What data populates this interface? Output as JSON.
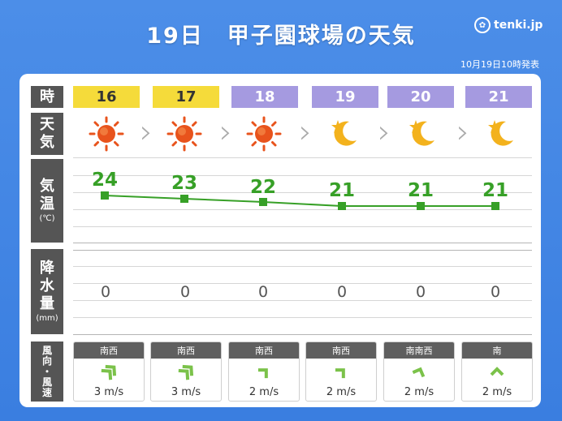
{
  "title": "19日　甲子園球場の天気",
  "logo_text": "tenki.jp",
  "issued": "10月19日10時発表",
  "row_labels": {
    "hour": "時",
    "weather_1": "天",
    "weather_2": "気",
    "temp_1": "気",
    "temp_2": "温",
    "temp_unit": "(℃)",
    "rain_1": "降",
    "rain_2": "水",
    "rain_3": "量",
    "rain_unit": "(mm)",
    "wind_1": "風",
    "wind_2": "向",
    "wind_3": "・",
    "wind_4": "風",
    "wind_5": "速"
  },
  "hours": [
    {
      "label": "16",
      "period": "day",
      "weather": "sun-icon",
      "temp": "24",
      "rain": "0",
      "wind_dir": "南西",
      "wind_speed": "3 m/s",
      "wind_level": "strong"
    },
    {
      "label": "17",
      "period": "day",
      "weather": "sun-icon",
      "temp": "23",
      "rain": "0",
      "wind_dir": "南西",
      "wind_speed": "3 m/s",
      "wind_level": "strong"
    },
    {
      "label": "18",
      "period": "night",
      "weather": "sun-icon",
      "temp": "22",
      "rain": "0",
      "wind_dir": "南西",
      "wind_speed": "2 m/s",
      "wind_level": "light"
    },
    {
      "label": "19",
      "period": "night",
      "weather": "moon-star-icon",
      "temp": "21",
      "rain": "0",
      "wind_dir": "南西",
      "wind_speed": "2 m/s",
      "wind_level": "light"
    },
    {
      "label": "20",
      "period": "night",
      "weather": "moon-star-icon",
      "temp": "21",
      "rain": "0",
      "wind_dir": "南南西",
      "wind_speed": "2 m/s",
      "wind_level": "light"
    },
    {
      "label": "21",
      "period": "night",
      "weather": "moon-star-icon",
      "temp": "21",
      "rain": "0",
      "wind_dir": "南",
      "wind_speed": "2 m/s",
      "wind_level": "light"
    }
  ],
  "colors": {
    "background": "#3a7ee0",
    "day_header": "#f5db3a",
    "night_header": "#a59ae0",
    "temp_line": "#37a027",
    "wind_arrow": "#7bc24a",
    "label_bg": "#555555"
  }
}
